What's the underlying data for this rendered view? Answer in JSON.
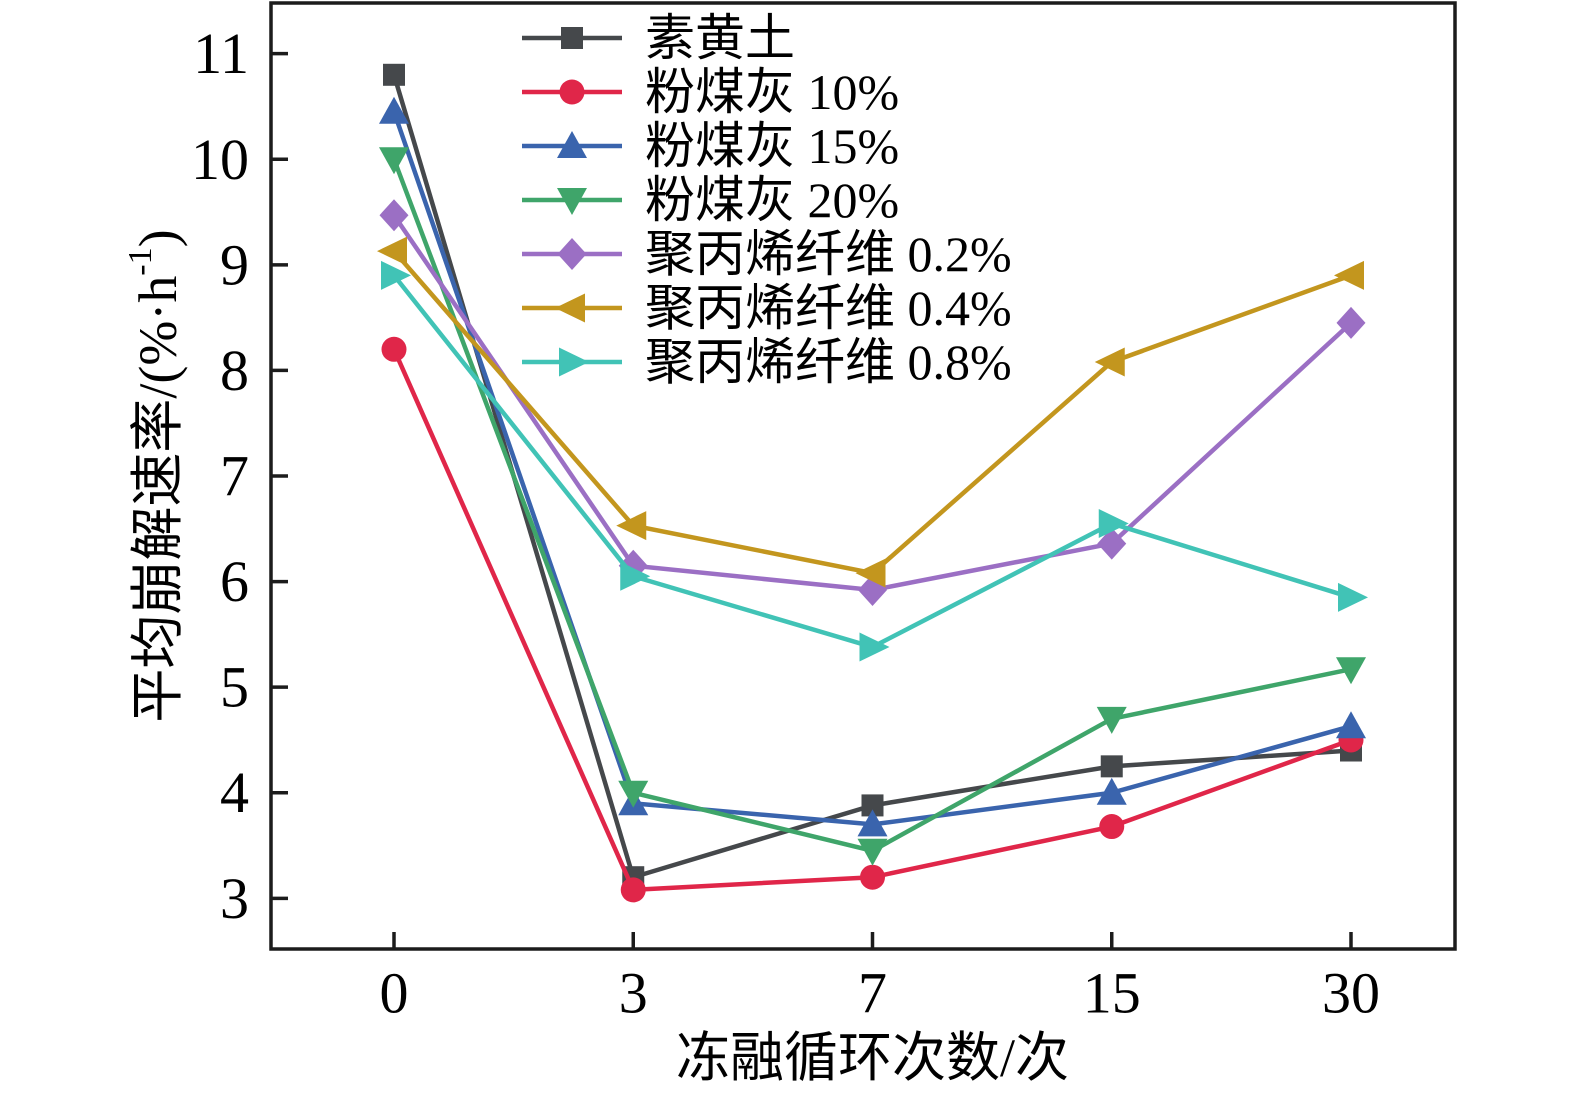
{
  "figure": {
    "background": "#ffffff",
    "axis_color": "#1c1c1c",
    "text_color": "#000000"
  },
  "chart_data": {
    "type": "line",
    "title": "",
    "xlabel": "冻融循环次数/次",
    "ylabel": "平均崩解速率/(%·h⁻¹)",
    "categories": [
      "0",
      "3",
      "7",
      "15",
      "30"
    ],
    "y_ticks": [
      "3",
      "4",
      "5",
      "6",
      "7",
      "8",
      "9",
      "10",
      "11"
    ],
    "ylim": [
      2.52,
      11.48
    ],
    "grid": false,
    "legend_position": "top-left-inside",
    "series": [
      {
        "name": "素黄土",
        "color": "#45484b",
        "marker": "square",
        "values": [
          10.8,
          3.2,
          3.88,
          4.25,
          4.4
        ]
      },
      {
        "name": "粉煤灰 10%",
        "color": "#e02649",
        "marker": "circle",
        "values": [
          8.2,
          3.08,
          3.2,
          3.68,
          4.5
        ]
      },
      {
        "name": "粉煤灰 15%",
        "color": "#3a64ad",
        "marker": "triangle-up",
        "values": [
          10.45,
          3.9,
          3.7,
          4.0,
          4.63
        ]
      },
      {
        "name": "粉煤灰 20%",
        "color": "#3fa56a",
        "marker": "triangle-down",
        "values": [
          10.0,
          4.0,
          3.45,
          4.7,
          5.17
        ]
      },
      {
        "name": "聚丙烯纤维 0.2%",
        "color": "#9b6fc4",
        "marker": "diamond",
        "values": [
          9.47,
          6.15,
          5.92,
          6.36,
          8.45
        ]
      },
      {
        "name": "聚丙烯纤维 0.4%",
        "color": "#c3961e",
        "marker": "triangle-left",
        "values": [
          9.13,
          6.53,
          6.08,
          8.08,
          8.9
        ]
      },
      {
        "name": "聚丙烯纤维 0.8%",
        "color": "#41c3b6",
        "marker": "triangle-right",
        "values": [
          8.9,
          6.05,
          5.38,
          6.55,
          5.85
        ]
      }
    ]
  }
}
